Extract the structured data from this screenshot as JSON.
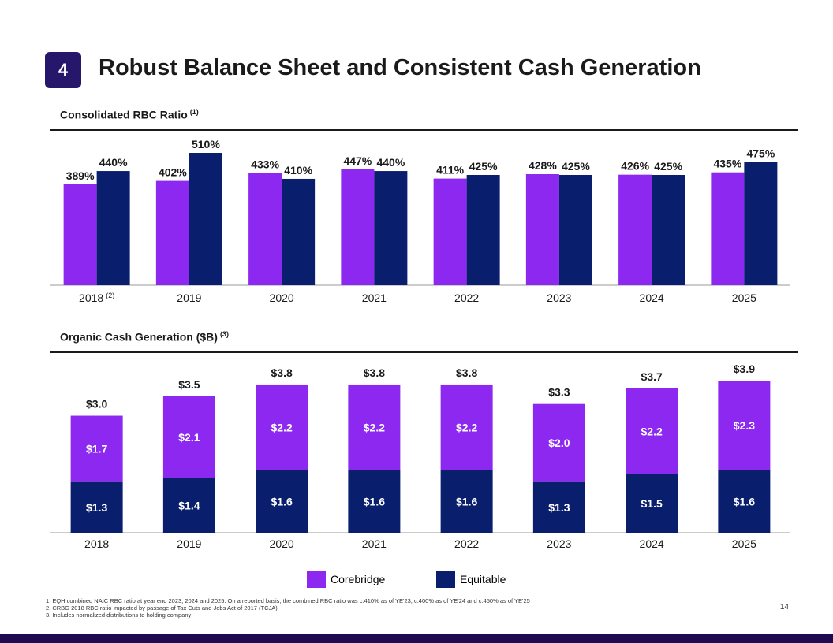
{
  "header": {
    "badge": "4",
    "title": "Robust Balance Sheet and Consistent Cash Generation"
  },
  "colors": {
    "corebridge": "#8c28f0",
    "equitable": "#0a1e6e",
    "badge": "#27176b",
    "bar": "#1e0a50"
  },
  "rbc_section": {
    "title": "Consolidated RBC Ratio",
    "note": "(1)"
  },
  "cash_section": {
    "title": "Organic Cash Generation ($B)",
    "note": "(3)"
  },
  "legend": {
    "corebridge": "Corebridge",
    "equitable": "Equitable"
  },
  "footnotes": [
    "1.   EQH combined NAIC RBC ratio at year end 2023, 2024 and 2025. On a reported basis, the combined RBC ratio was c.410% as of YE'23, c.400% as of YE'24 and c.450% as of YE'25",
    "2.   CRBG 2018 RBC ratio impacted by passage of Tax Cuts and Jobs Act of 2017 (TCJA)",
    "3.   Includes normalized distributions to holding company"
  ],
  "page_number": "14",
  "chart_data": [
    {
      "type": "bar",
      "title": "Consolidated RBC Ratio",
      "categories": [
        "2018",
        "2019",
        "2020",
        "2021",
        "2022",
        "2023",
        "2024",
        "2025"
      ],
      "category_notes": [
        "(2)",
        "",
        "",
        "",
        "",
        "",
        "",
        ""
      ],
      "series": [
        {
          "name": "Corebridge",
          "values": [
            389,
            402,
            433,
            447,
            411,
            428,
            426,
            435
          ],
          "labels": [
            "389%",
            "402%",
            "433%",
            "447%",
            "411%",
            "428%",
            "426%",
            "435%"
          ]
        },
        {
          "name": "Equitable",
          "values": [
            440,
            510,
            410,
            440,
            425,
            425,
            425,
            475
          ],
          "labels": [
            "440%",
            "510%",
            "410%",
            "440%",
            "425%",
            "425%",
            "425%",
            "475%"
          ]
        }
      ],
      "value_unit": "%"
    },
    {
      "type": "bar",
      "stacked": true,
      "title": "Organic Cash Generation ($B)",
      "categories": [
        "2018",
        "2019",
        "2020",
        "2021",
        "2022",
        "2023",
        "2024",
        "2025"
      ],
      "series": [
        {
          "name": "Equitable",
          "values": [
            1.3,
            1.4,
            1.6,
            1.6,
            1.6,
            1.3,
            1.5,
            1.6
          ],
          "labels": [
            "$1.3",
            "$1.4",
            "$1.6",
            "$1.6",
            "$1.6",
            "$1.3",
            "$1.5",
            "$1.6"
          ]
        },
        {
          "name": "Corebridge",
          "values": [
            1.7,
            2.1,
            2.2,
            2.2,
            2.2,
            2.0,
            2.2,
            2.3
          ],
          "labels": [
            "$1.7",
            "$2.1",
            "$2.2",
            "$2.2",
            "$2.2",
            "$2.0",
            "$2.2",
            "$2.3"
          ]
        }
      ],
      "totals": [
        3.0,
        3.5,
        3.8,
        3.8,
        3.8,
        3.3,
        3.7,
        3.9
      ],
      "total_labels": [
        "$3.0",
        "$3.5",
        "$3.8",
        "$3.8",
        "$3.8",
        "$3.3",
        "$3.7",
        "$3.9"
      ],
      "value_unit": "$B"
    }
  ]
}
